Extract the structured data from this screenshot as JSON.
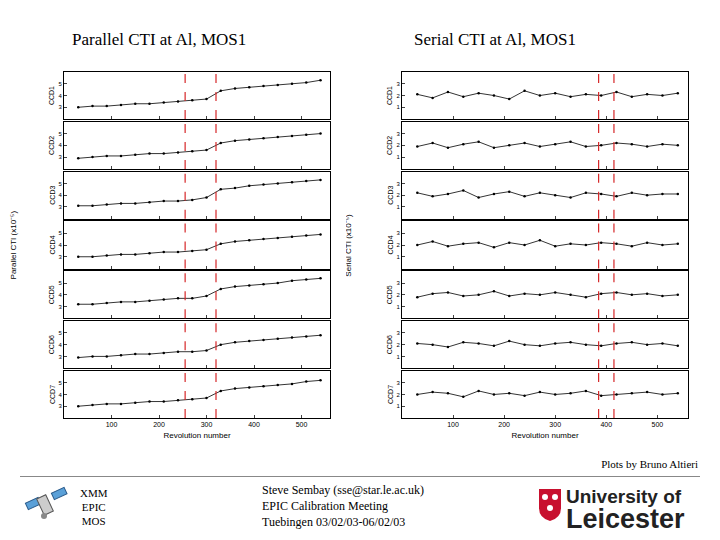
{
  "page": {
    "credit": "Plots by Bruno Altieri",
    "mission": [
      "XMM",
      "EPIC",
      "MOS"
    ],
    "author": [
      "Steve Sembay (sse@star.le.ac.uk)",
      "EPIC Calibration Meeting",
      "Tuebingen 03/02/03-06/02/03"
    ],
    "university": [
      "University of",
      "Leicester"
    ]
  },
  "chart_data": [
    {
      "type": "line",
      "title": "Parallel CTI at Al, MOS1",
      "x_label": "Revolution number",
      "y_label": "Parallel CTI (x10⁻⁵)",
      "x": [
        30,
        60,
        90,
        120,
        150,
        180,
        210,
        240,
        270,
        300,
        330,
        360,
        390,
        420,
        450,
        480,
        510,
        540
      ],
      "xlim": [
        0,
        560
      ],
      "xticks": [
        100,
        200,
        300,
        400,
        500
      ],
      "ylim": [
        2,
        6
      ],
      "yticks": [
        3,
        4,
        5
      ],
      "color": "#000000",
      "marker": "circle",
      "line_style": "solid",
      "reference_lines": [
        {
          "x": 255,
          "color": "#d62728",
          "line_style": "dashed"
        },
        {
          "x": 320,
          "color": "#d62728",
          "line_style": "dashed"
        }
      ],
      "series": [
        {
          "name": "CCD1",
          "values": [
            3.0,
            3.1,
            3.1,
            3.2,
            3.3,
            3.3,
            3.4,
            3.5,
            3.6,
            3.7,
            4.4,
            4.6,
            4.7,
            4.8,
            4.9,
            5.0,
            5.1,
            5.3
          ]
        },
        {
          "name": "CCD2",
          "values": [
            2.9,
            3.0,
            3.1,
            3.1,
            3.2,
            3.3,
            3.3,
            3.4,
            3.5,
            3.6,
            4.2,
            4.4,
            4.5,
            4.6,
            4.7,
            4.8,
            4.9,
            5.0
          ]
        },
        {
          "name": "CCD3",
          "values": [
            3.1,
            3.1,
            3.2,
            3.3,
            3.3,
            3.4,
            3.5,
            3.5,
            3.6,
            3.8,
            4.5,
            4.6,
            4.8,
            4.9,
            5.0,
            5.1,
            5.2,
            5.3
          ]
        },
        {
          "name": "CCD4",
          "values": [
            3.0,
            3.0,
            3.1,
            3.2,
            3.2,
            3.3,
            3.4,
            3.4,
            3.5,
            3.6,
            4.1,
            4.3,
            4.4,
            4.5,
            4.6,
            4.7,
            4.8,
            4.9
          ]
        },
        {
          "name": "CCD5",
          "values": [
            3.2,
            3.2,
            3.3,
            3.4,
            3.4,
            3.5,
            3.6,
            3.7,
            3.7,
            3.9,
            4.5,
            4.7,
            4.8,
            4.9,
            5.0,
            5.2,
            5.3,
            5.4
          ]
        },
        {
          "name": "CCD6",
          "values": [
            2.9,
            3.0,
            3.0,
            3.1,
            3.2,
            3.2,
            3.3,
            3.4,
            3.4,
            3.5,
            4.0,
            4.2,
            4.3,
            4.4,
            4.5,
            4.6,
            4.7,
            4.8
          ]
        },
        {
          "name": "CCD7",
          "values": [
            3.0,
            3.1,
            3.2,
            3.2,
            3.3,
            3.4,
            3.4,
            3.5,
            3.6,
            3.7,
            4.3,
            4.5,
            4.6,
            4.7,
            4.8,
            4.9,
            5.1,
            5.2
          ]
        }
      ]
    },
    {
      "type": "line",
      "title": "Serial CTI at Al, MOS1",
      "x_label": "Revolution number",
      "y_label": "Serial CTI (x10⁻⁵)",
      "x": [
        30,
        60,
        90,
        120,
        150,
        180,
        210,
        240,
        270,
        300,
        330,
        360,
        390,
        420,
        450,
        480,
        510,
        540
      ],
      "xlim": [
        0,
        560
      ],
      "xticks": [
        100,
        200,
        300,
        400,
        500
      ],
      "ylim": [
        0,
        4
      ],
      "yticks": [
        1,
        2,
        3
      ],
      "color": "#000000",
      "marker": "circle",
      "line_style": "solid",
      "reference_lines": [
        {
          "x": 385,
          "color": "#d62728",
          "line_style": "dashed"
        },
        {
          "x": 415,
          "color": "#d62728",
          "line_style": "dashed"
        }
      ],
      "series": [
        {
          "name": "CCD1",
          "values": [
            2.1,
            1.8,
            2.3,
            1.9,
            2.2,
            2.0,
            1.7,
            2.4,
            2.0,
            2.2,
            1.9,
            2.1,
            2.0,
            2.3,
            1.9,
            2.1,
            2.0,
            2.2
          ]
        },
        {
          "name": "CCD2",
          "values": [
            1.9,
            2.2,
            1.8,
            2.1,
            2.3,
            1.8,
            2.0,
            2.2,
            1.9,
            2.1,
            2.3,
            1.9,
            2.0,
            2.2,
            2.1,
            1.9,
            2.1,
            2.0
          ]
        },
        {
          "name": "CCD3",
          "values": [
            2.2,
            1.9,
            2.1,
            2.4,
            1.8,
            2.1,
            2.3,
            1.9,
            2.2,
            2.0,
            1.8,
            2.2,
            2.1,
            1.9,
            2.2,
            2.0,
            2.1,
            2.1
          ]
        },
        {
          "name": "CCD4",
          "values": [
            2.0,
            2.3,
            1.9,
            2.1,
            2.2,
            1.8,
            2.2,
            2.0,
            2.4,
            1.9,
            2.1,
            2.0,
            2.2,
            2.1,
            1.9,
            2.2,
            2.0,
            2.1
          ]
        },
        {
          "name": "CCD5",
          "values": [
            1.8,
            2.1,
            2.2,
            1.9,
            2.0,
            2.3,
            1.9,
            2.1,
            2.0,
            2.2,
            2.0,
            1.8,
            2.1,
            2.2,
            2.0,
            2.1,
            1.9,
            2.0
          ]
        },
        {
          "name": "CCD6",
          "values": [
            2.1,
            2.0,
            1.8,
            2.2,
            2.1,
            1.9,
            2.3,
            2.0,
            1.9,
            2.1,
            2.2,
            2.0,
            1.9,
            2.1,
            2.2,
            2.0,
            2.1,
            1.9
          ]
        },
        {
          "name": "CCD7",
          "values": [
            2.0,
            2.2,
            2.1,
            1.8,
            2.3,
            2.0,
            2.1,
            1.9,
            2.2,
            2.0,
            2.1,
            2.3,
            1.9,
            2.0,
            2.1,
            2.2,
            2.0,
            2.1
          ]
        }
      ]
    }
  ]
}
